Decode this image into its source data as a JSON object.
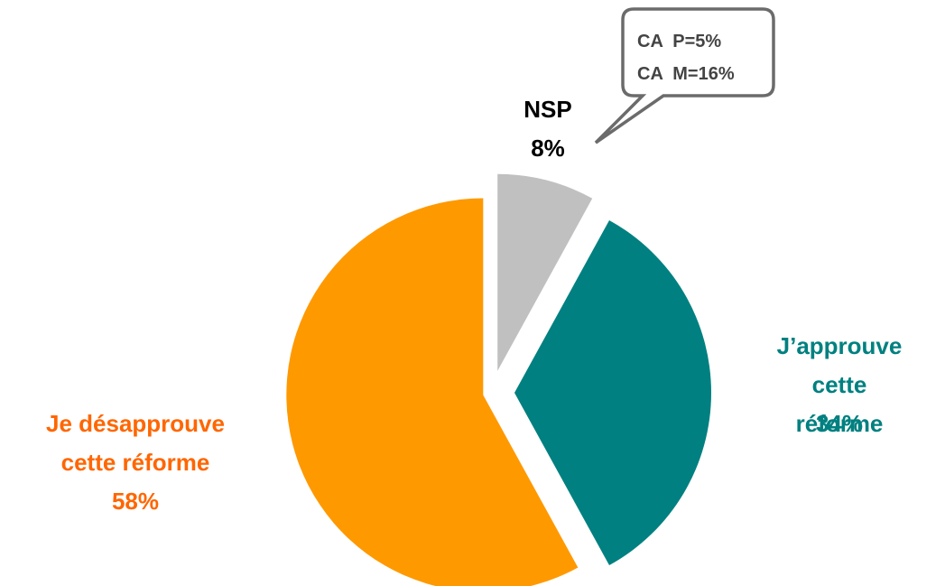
{
  "chart_data": {
    "type": "pie",
    "categories": [
      "NSP",
      "J’approuve\ncette réforme",
      "Je désapprouve\ncette réforme"
    ],
    "values": [
      8,
      34,
      58
    ],
    "value_labels": [
      "8%",
      "34%",
      "58%"
    ],
    "colors": [
      "#C0C0C0",
      "#008080",
      "#FF9900"
    ],
    "label_colors": [
      "#000000",
      "#008080",
      "#FF6600"
    ],
    "annotations": [
      "CA  P=5%",
      "CA  M=16%"
    ]
  }
}
